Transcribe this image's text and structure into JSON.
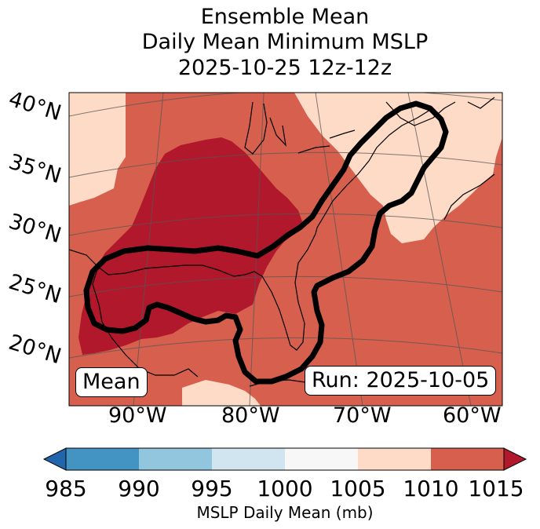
{
  "title": {
    "line1": "Ensemble Mean",
    "line2": "Daily Mean Minimum MSLP",
    "line3": "2025-10-25 12z-12z"
  },
  "map": {
    "region": "Gulf of Mexico / U.S. East Coast / Western Atlantic",
    "lat_labels": [
      "40°N",
      "35°N",
      "30°N",
      "25°N",
      "20°N"
    ],
    "lon_labels": [
      "90°W",
      "80°W",
      "70°W",
      "60°W"
    ],
    "mean_box": "Mean",
    "run_box": "Run: 2025-10-05",
    "contour_color": "#000000"
  },
  "colorbar": {
    "label": "MSLP Daily Mean (mb)",
    "ticks": [
      "985",
      "990",
      "995",
      "1000",
      "1005",
      "1010",
      "1015"
    ],
    "bins": [
      {
        "range": "985-990",
        "color": "#4393c3"
      },
      {
        "range": "990-995",
        "color": "#92c5de"
      },
      {
        "range": "995-1000",
        "color": "#d1e5f0"
      },
      {
        "range": "1000-1005",
        "color": "#f7f7f7"
      },
      {
        "range": "1005-1010",
        "color": "#fddbc7"
      },
      {
        "range": "1010-1015",
        "color": "#d6604d"
      }
    ],
    "under_color": "#2166ac",
    "over_color": "#b2182b"
  }
}
